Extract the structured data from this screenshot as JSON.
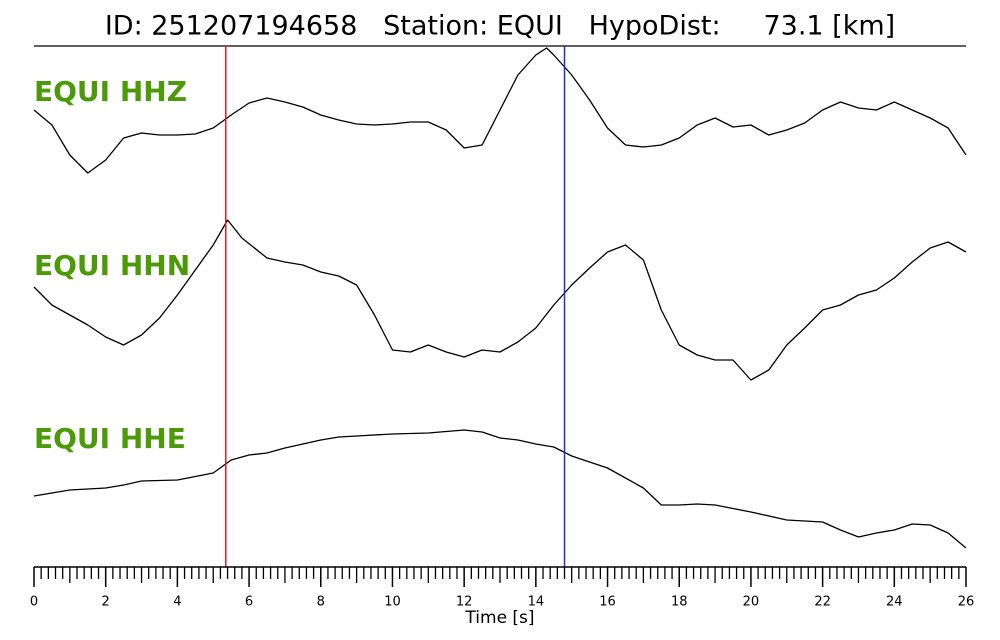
{
  "chart_data": {
    "type": "seismogram",
    "title": "ID: 251207194658   Station: EQUI   HypoDist:     73.1 [km]",
    "xlabel": "Time [s]",
    "xlim": [
      0,
      26
    ],
    "xticks": [
      0,
      2,
      4,
      6,
      8,
      10,
      12,
      14,
      16,
      18,
      20,
      22,
      24,
      26
    ],
    "minor_ticks_per_major": 10,
    "label_color": "#4c9a0a",
    "line_color": "#000000",
    "picks": [
      {
        "x": 5.35,
        "color": "#e41a1c"
      },
      {
        "x": 14.8,
        "color": "#1f2fd0"
      }
    ],
    "series": [
      {
        "name": "EQUI HHZ",
        "ylim": [
          -70,
          70
        ],
        "x": [
          0,
          0.5,
          1,
          1.5,
          2,
          2.5,
          3,
          3.5,
          4,
          4.5,
          5,
          5.5,
          6,
          6.5,
          7,
          7.5,
          8,
          8.5,
          9,
          9.5,
          10,
          10.5,
          11,
          11.5,
          12,
          12.5,
          13,
          13.5,
          14,
          14.3,
          14.5,
          15,
          15.5,
          16,
          16.5,
          17,
          17.5,
          18,
          18.5,
          19,
          19.5,
          20,
          20.5,
          21,
          21.5,
          22,
          22.5,
          23,
          23.5,
          24,
          24.5,
          25,
          25.5,
          26
        ],
        "values": [
          0,
          -15,
          -45,
          -63,
          -50,
          -28,
          -23,
          -25,
          -25,
          -24,
          -18,
          -5,
          7,
          12,
          8,
          3,
          -5,
          -10,
          -14,
          -15,
          -14,
          -12,
          -12,
          -20,
          -38,
          -35,
          0,
          35,
          55,
          62,
          55,
          35,
          10,
          -18,
          -35,
          -37,
          -35,
          -28,
          -15,
          -8,
          -17,
          -15,
          -25,
          -20,
          -13,
          0,
          8,
          2,
          0,
          8,
          0,
          -8,
          -18,
          -45
        ]
      },
      {
        "name": "EQUI HHN",
        "ylim": [
          -90,
          90
        ],
        "x": [
          0,
          0.5,
          1,
          1.5,
          2,
          2.5,
          3,
          3.5,
          4,
          4.5,
          5,
          5.4,
          5.8,
          6.5,
          7,
          7.5,
          8,
          8.5,
          9,
          9.5,
          10,
          10.5,
          11,
          11.5,
          12,
          12.5,
          13,
          13.5,
          14,
          14.5,
          15,
          15.5,
          16,
          16.5,
          17,
          17.5,
          18,
          18.5,
          19,
          19.5,
          20,
          20.5,
          21,
          21.5,
          22,
          22.5,
          23,
          23.5,
          24,
          24.5,
          25,
          25.5,
          26
        ],
        "values": [
          13,
          -5,
          -15,
          -25,
          -37,
          -45,
          -35,
          -18,
          5,
          30,
          55,
          80,
          62,
          42,
          38,
          35,
          28,
          24,
          15,
          -15,
          -50,
          -52,
          -45,
          -52,
          -57,
          -50,
          -52,
          -42,
          -28,
          -5,
          15,
          32,
          48,
          55,
          40,
          -10,
          -45,
          -55,
          -60,
          -60,
          -80,
          -70,
          -45,
          -28,
          -10,
          -5,
          5,
          10,
          22,
          38,
          52,
          58,
          48
        ]
      },
      {
        "name": "EQUI HHE",
        "ylim": [
          -70,
          70
        ],
        "x": [
          0,
          1,
          2,
          2.5,
          3,
          4,
          5,
          5.5,
          6,
          6.5,
          7,
          8,
          8.5,
          9,
          10,
          11,
          12,
          12.5,
          13,
          13.5,
          14,
          14.5,
          15,
          16,
          17,
          17.5,
          18,
          18.5,
          19,
          20,
          21,
          22,
          22.5,
          23,
          23.5,
          24,
          24.5,
          25,
          25.5,
          26
        ],
        "values": [
          -6,
          0,
          2,
          5,
          9,
          10,
          17,
          30,
          35,
          37,
          42,
          50,
          53,
          54,
          56,
          57,
          60,
          58,
          52,
          50,
          46,
          43,
          34,
          22,
          2,
          -15,
          -15,
          -14,
          -15,
          -22,
          -30,
          -32,
          -40,
          -47,
          -43,
          -40,
          -34,
          -35,
          -43,
          -58
        ]
      }
    ]
  }
}
